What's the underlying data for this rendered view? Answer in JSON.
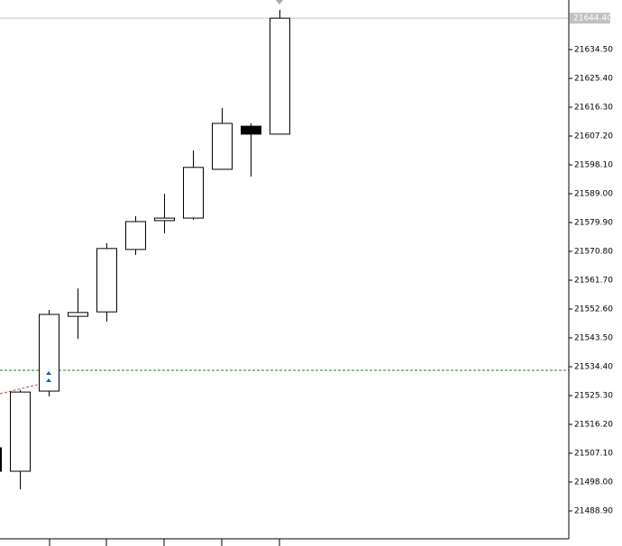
{
  "chart_data": {
    "type": "candlestick",
    "open": [
      21508.8,
      21501.4,
      21526.7,
      21550.3,
      21551.7,
      21571.4,
      21580.5,
      21581.3,
      21596.7,
      21610.3,
      21607.8
    ],
    "high": [
      21508.8,
      21527.0,
      21552.3,
      21559.1,
      21573.4,
      21581.9,
      21589.0,
      21602.7,
      21616.0,
      21611.2,
      21647.0
    ],
    "low": [
      21501.4,
      21495.7,
      21525.0,
      21543.2,
      21548.6,
      21569.7,
      21576.5,
      21580.8,
      21596.7,
      21594.4,
      21607.8
    ],
    "close": [
      21501.4,
      21526.4,
      21550.9,
      21551.5,
      21571.7,
      21580.2,
      21581.3,
      21597.3,
      21611.2,
      21607.8,
      21644.4
    ],
    "bull_color": "#ffffff",
    "bear_color": "#000000",
    "ylim": [
      21480.08,
      21650.14
    ],
    "yticks": [
      {
        "value": 21488.9,
        "label": "21488.90"
      },
      {
        "value": 21498.0,
        "label": "21498.00"
      },
      {
        "value": 21507.1,
        "label": "21507.10"
      },
      {
        "value": 21516.2,
        "label": "21516.20"
      },
      {
        "value": 21525.3,
        "label": "21525.30"
      },
      {
        "value": 21534.4,
        "label": "21534.40"
      },
      {
        "value": 21543.5,
        "label": "21543.50"
      },
      {
        "value": 21552.6,
        "label": "21552.60"
      },
      {
        "value": 21561.7,
        "label": "21561.70"
      },
      {
        "value": 21570.8,
        "label": "21570.80"
      },
      {
        "value": 21579.9,
        "label": "21579.90"
      },
      {
        "value": 21589.0,
        "label": "21589.00"
      },
      {
        "value": 21598.1,
        "label": "21598.10"
      },
      {
        "value": 21607.2,
        "label": "21607.20"
      },
      {
        "value": 21616.3,
        "label": "21616.30"
      },
      {
        "value": 21625.4,
        "label": "21625.40"
      },
      {
        "value": 21634.5,
        "label": "21634.50"
      }
    ],
    "last_price": {
      "value": 21644.4,
      "label": "21644.40"
    },
    "entry_level": 21533.26
  }
}
